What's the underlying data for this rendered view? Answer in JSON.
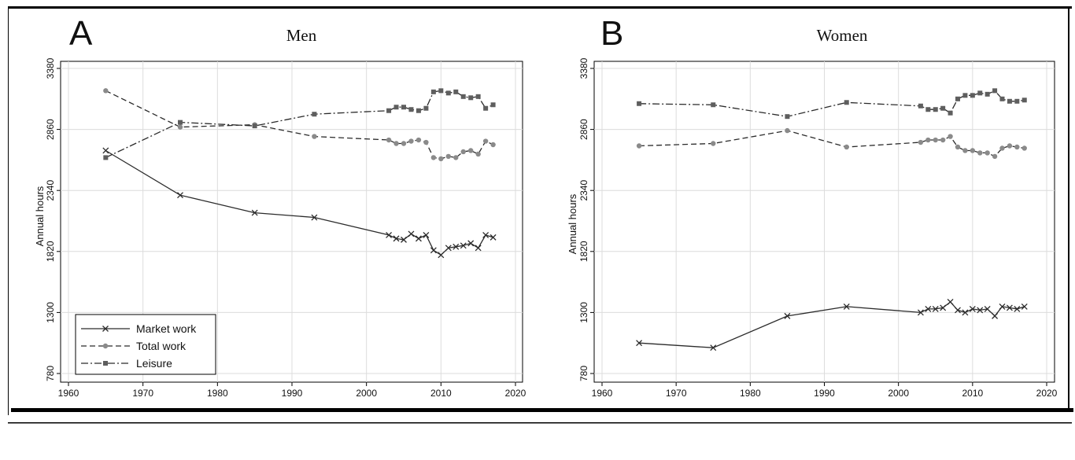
{
  "figure": {
    "legend_items": [
      {
        "label": "Market work",
        "style": "solid",
        "marker": "x"
      },
      {
        "label": "Total work",
        "style": "dashed",
        "marker": "circle"
      },
      {
        "label": "Leisure",
        "style": "dashdot",
        "marker": "square"
      }
    ]
  },
  "colors": {
    "line": "#2b2b2b",
    "marker_fill": "#8a8a8a",
    "grid": "#dcdcdc",
    "frame": "#000000"
  },
  "chart_data": [
    {
      "type": "line",
      "panel_label": "A",
      "title": "Men",
      "xlabel": "",
      "ylabel": "Annual hours",
      "xlim": [
        1960,
        2020
      ],
      "ylim": [
        780,
        3380
      ],
      "xticks": [
        1960,
        1970,
        1980,
        1990,
        2000,
        2010,
        2020
      ],
      "yticks": [
        780,
        1300,
        1820,
        2340,
        2860,
        3380
      ],
      "grid": true,
      "legend_position": "bottom-left",
      "series": [
        {
          "name": "Market work",
          "style": "solid",
          "marker": "x",
          "x": [
            1965,
            1975,
            1985,
            1993,
            2003,
            2004,
            2005,
            2006,
            2007,
            2008,
            2009,
            2010,
            2011,
            2012,
            2013,
            2014,
            2015,
            2016,
            2017
          ],
          "y": [
            2680,
            2300,
            2150,
            2110,
            1960,
            1930,
            1920,
            1970,
            1930,
            1960,
            1830,
            1790,
            1850,
            1860,
            1870,
            1890,
            1850,
            1960,
            1940
          ]
        },
        {
          "name": "Total work",
          "style": "dashed",
          "marker": "circle",
          "x": [
            1965,
            1975,
            1985,
            1993,
            2003,
            2004,
            2005,
            2006,
            2007,
            2008,
            2009,
            2010,
            2011,
            2012,
            2013,
            2014,
            2015,
            2016,
            2017
          ],
          "y": [
            3190,
            2880,
            2900,
            2800,
            2770,
            2740,
            2740,
            2760,
            2770,
            2750,
            2620,
            2610,
            2630,
            2620,
            2670,
            2680,
            2650,
            2760,
            2730
          ]
        },
        {
          "name": "Leisure",
          "style": "dashdot",
          "marker": "square",
          "x": [
            1965,
            1975,
            1985,
            1993,
            2003,
            2004,
            2005,
            2006,
            2007,
            2008,
            2009,
            2010,
            2011,
            2012,
            2013,
            2014,
            2015,
            2016,
            2017
          ],
          "y": [
            2620,
            2920,
            2890,
            2990,
            3020,
            3050,
            3050,
            3030,
            3020,
            3040,
            3180,
            3190,
            3170,
            3180,
            3140,
            3130,
            3140,
            3040,
            3070
          ]
        }
      ]
    },
    {
      "type": "line",
      "panel_label": "B",
      "title": "Women",
      "xlabel": "",
      "ylabel": "Annual hours",
      "xlim": [
        1960,
        2020
      ],
      "ylim": [
        780,
        3380
      ],
      "xticks": [
        1960,
        1970,
        1980,
        1990,
        2000,
        2010,
        2020
      ],
      "yticks": [
        780,
        1300,
        1820,
        2340,
        2860,
        3380
      ],
      "grid": true,
      "series": [
        {
          "name": "Market work",
          "style": "solid",
          "marker": "x",
          "x": [
            1965,
            1975,
            1985,
            1993,
            2003,
            2004,
            2005,
            2006,
            2007,
            2008,
            2009,
            2010,
            2011,
            2012,
            2013,
            2014,
            2015,
            2016,
            2017
          ],
          "y": [
            1040,
            1000,
            1270,
            1350,
            1300,
            1330,
            1330,
            1340,
            1390,
            1320,
            1300,
            1330,
            1320,
            1330,
            1270,
            1350,
            1340,
            1330,
            1350
          ]
        },
        {
          "name": "Total work",
          "style": "dashed",
          "marker": "circle",
          "x": [
            1965,
            1975,
            1985,
            1993,
            2003,
            2004,
            2005,
            2006,
            2007,
            2008,
            2009,
            2010,
            2011,
            2012,
            2013,
            2014,
            2015,
            2016,
            2017
          ],
          "y": [
            2720,
            2740,
            2850,
            2710,
            2750,
            2770,
            2770,
            2770,
            2800,
            2710,
            2680,
            2680,
            2660,
            2660,
            2630,
            2700,
            2720,
            2710,
            2700
          ]
        },
        {
          "name": "Leisure",
          "style": "dashdot",
          "marker": "square",
          "x": [
            1965,
            1975,
            1985,
            1993,
            2003,
            2004,
            2005,
            2006,
            2007,
            2008,
            2009,
            2010,
            2011,
            2012,
            2013,
            2014,
            2015,
            2016,
            2017
          ],
          "y": [
            3080,
            3070,
            2970,
            3090,
            3060,
            3030,
            3030,
            3040,
            3000,
            3120,
            3150,
            3150,
            3170,
            3160,
            3190,
            3120,
            3100,
            3100,
            3110
          ]
        }
      ]
    }
  ]
}
